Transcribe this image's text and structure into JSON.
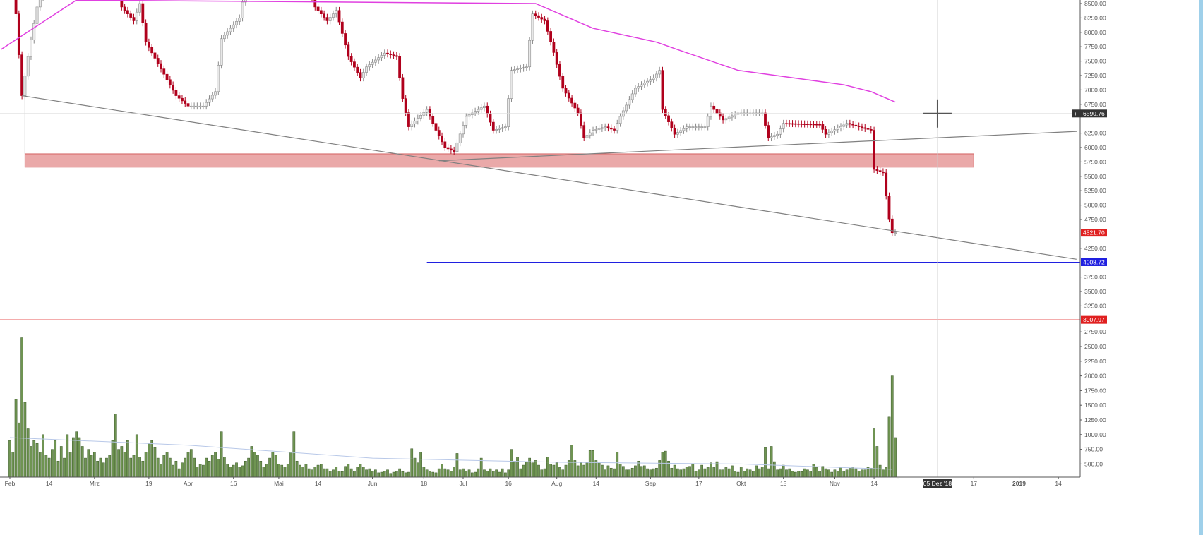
{
  "colors": {
    "candle_up_body": "#e8e8e8",
    "candle_up_border": "#8a8a8a",
    "candle_down": "#b0001c",
    "volume_bar": "#6f9452",
    "volume_bar_border": "#3c5a2a",
    "moving_average": "#e040e0",
    "volume_ma": "#b8c8e8",
    "support_zone": "#e8a0a0",
    "support_zone_border": "#d05050",
    "trendline": "#808080",
    "blue_level": "#2020e0",
    "red_level": "#e02020",
    "crosshair_tag": "#333333"
  },
  "chart_data": {
    "type": "candlestick",
    "title": "",
    "xlabel": "",
    "ylabel": "",
    "price_ylim": [
      2880,
      8560
    ],
    "volume_ylim": [
      0,
      2900
    ],
    "grid": false,
    "x_ticks": [
      {
        "label": "Feb",
        "date": "2018-02-01"
      },
      {
        "label": "14",
        "date": "2018-02-14"
      },
      {
        "label": "Mrz",
        "date": "2018-03-01"
      },
      {
        "label": "19",
        "date": "2018-03-19"
      },
      {
        "label": "Apr",
        "date": "2018-04-01"
      },
      {
        "label": "16",
        "date": "2018-04-16"
      },
      {
        "label": "Mai",
        "date": "2018-05-01"
      },
      {
        "label": "14",
        "date": "2018-05-14"
      },
      {
        "label": "Jun",
        "date": "2018-06-01"
      },
      {
        "label": "18",
        "date": "2018-06-18"
      },
      {
        "label": "Jul",
        "date": "2018-07-01"
      },
      {
        "label": "16",
        "date": "2018-07-16"
      },
      {
        "label": "Aug",
        "date": "2018-08-01"
      },
      {
        "label": "14",
        "date": "2018-08-14"
      },
      {
        "label": "Sep",
        "date": "2018-09-01"
      },
      {
        "label": "17",
        "date": "2018-09-17"
      },
      {
        "label": "Okt",
        "date": "2018-10-01"
      },
      {
        "label": "15",
        "date": "2018-10-15"
      },
      {
        "label": "Nov",
        "date": "2018-11-01"
      },
      {
        "label": "14",
        "date": "2018-11-14"
      },
      {
        "label": "17",
        "date": "2018-12-17"
      },
      {
        "label": "2019",
        "date": "2019-01-01"
      },
      {
        "label": "14",
        "date": "2019-01-14"
      }
    ],
    "price_ticks": [
      "8500.00",
      "8250.00",
      "8000.00",
      "7750.00",
      "7500.00",
      "7250.00",
      "7000.00",
      "6750.00",
      "6250.00",
      "6000.00",
      "5750.00",
      "5500.00",
      "5250.00",
      "5000.00",
      "4750.00",
      "4250.00",
      "3750.00",
      "3500.00",
      "3250.00"
    ],
    "volume_ticks": [
      "2750.00",
      "2500.00",
      "2250.00",
      "2000.00",
      "1750.00",
      "1500.00",
      "1250.00",
      "1000.00",
      "750.00",
      "500.00"
    ],
    "close_keypoints": [
      [
        "2018-02-01",
        8930
      ],
      [
        "2018-02-03",
        8320
      ],
      [
        "2018-02-05",
        6900
      ],
      [
        "2018-02-07",
        7580
      ],
      [
        "2018-02-10",
        8440
      ],
      [
        "2018-02-14",
        9100
      ],
      [
        "2018-02-25",
        10500
      ],
      [
        "2018-03-06",
        9800
      ],
      [
        "2018-03-10",
        8440
      ],
      [
        "2018-03-14",
        8200
      ],
      [
        "2018-03-16",
        8500
      ],
      [
        "2018-03-18",
        7830
      ],
      [
        "2018-03-28",
        6900
      ],
      [
        "2018-04-01",
        6720
      ],
      [
        "2018-04-06",
        6720
      ],
      [
        "2018-04-10",
        6970
      ],
      [
        "2018-04-12",
        7890
      ],
      [
        "2018-04-18",
        8250
      ],
      [
        "2018-04-20",
        8800
      ],
      [
        "2018-04-28",
        9300
      ],
      [
        "2018-05-05",
        9600
      ],
      [
        "2018-05-13",
        8440
      ],
      [
        "2018-05-17",
        8200
      ],
      [
        "2018-05-20",
        8380
      ],
      [
        "2018-05-24",
        7580
      ],
      [
        "2018-05-28",
        7210
      ],
      [
        "2018-05-30",
        7400
      ],
      [
        "2018-06-05",
        7640
      ],
      [
        "2018-06-09",
        7580
      ],
      [
        "2018-06-11",
        6850
      ],
      [
        "2018-06-13",
        6360
      ],
      [
        "2018-06-19",
        6660
      ],
      [
        "2018-06-22",
        6300
      ],
      [
        "2018-06-25",
        6000
      ],
      [
        "2018-06-28",
        5930
      ],
      [
        "2018-07-02",
        6540
      ],
      [
        "2018-07-08",
        6720
      ],
      [
        "2018-07-11",
        6300
      ],
      [
        "2018-07-15",
        6360
      ],
      [
        "2018-07-17",
        7340
      ],
      [
        "2018-07-22",
        7400
      ],
      [
        "2018-07-24",
        8320
      ],
      [
        "2018-07-28",
        8200
      ],
      [
        "2018-07-31",
        7650
      ],
      [
        "2018-08-03",
        7030
      ],
      [
        "2018-08-08",
        6600
      ],
      [
        "2018-08-10",
        6170
      ],
      [
        "2018-08-13",
        6300
      ],
      [
        "2018-08-17",
        6360
      ],
      [
        "2018-08-20",
        6300
      ],
      [
        "2018-08-22",
        6540
      ],
      [
        "2018-08-27",
        7030
      ],
      [
        "2018-09-02",
        7210
      ],
      [
        "2018-09-04",
        7340
      ],
      [
        "2018-09-05",
        6660
      ],
      [
        "2018-09-09",
        6230
      ],
      [
        "2018-09-13",
        6360
      ],
      [
        "2018-09-19",
        6360
      ],
      [
        "2018-09-21",
        6720
      ],
      [
        "2018-09-25",
        6480
      ],
      [
        "2018-09-30",
        6600
      ],
      [
        "2018-10-08",
        6600
      ],
      [
        "2018-10-10",
        6170
      ],
      [
        "2018-10-13",
        6230
      ],
      [
        "2018-10-15",
        6420
      ],
      [
        "2018-10-27",
        6400
      ],
      [
        "2018-10-29",
        6230
      ],
      [
        "2018-11-05",
        6420
      ],
      [
        "2018-11-09",
        6360
      ],
      [
        "2018-11-13",
        6300
      ],
      [
        "2018-11-14",
        5620
      ],
      [
        "2018-11-17",
        5560
      ],
      [
        "2018-11-19",
        4760
      ],
      [
        "2018-11-20",
        4520
      ],
      [
        "2018-11-21",
        4521.7
      ]
    ],
    "moving_average": [
      [
        "2018-01-29",
        7700
      ],
      [
        "2018-02-23",
        8560
      ],
      [
        "2018-07-25",
        8500
      ],
      [
        "2018-08-13",
        8070
      ],
      [
        "2018-09-03",
        7830
      ],
      [
        "2018-09-10",
        7700
      ],
      [
        "2018-09-30",
        7340
      ],
      [
        "2018-10-21",
        7190
      ],
      [
        "2018-11-04",
        7090
      ],
      [
        "2018-11-13",
        6970
      ],
      [
        "2018-11-21",
        6790
      ]
    ],
    "volume_start_date": "2018-02-01",
    "volumes": [
      900,
      700,
      1600,
      1200,
      2650,
      1550,
      1100,
      800,
      900,
      850,
      700,
      1000,
      650,
      600,
      750,
      900,
      550,
      800,
      600,
      1000,
      700,
      950,
      1050,
      950,
      800,
      600,
      750,
      650,
      700,
      550,
      600,
      520,
      600,
      650,
      900,
      1350,
      750,
      800,
      700,
      900,
      600,
      650,
      1000,
      620,
      550,
      700,
      850,
      900,
      780,
      600,
      500,
      650,
      700,
      600,
      480,
      550,
      420,
      520,
      600,
      700,
      750,
      600,
      450,
      500,
      480,
      600,
      550,
      650,
      700,
      580,
      1050,
      620,
      500,
      450,
      480,
      520,
      450,
      470,
      550,
      600,
      800,
      700,
      650,
      550,
      450,
      500,
      600,
      700,
      650,
      500,
      480,
      450,
      500,
      700,
      1050,
      550,
      480,
      450,
      500,
      420,
      400,
      450,
      480,
      500,
      420,
      420,
      380,
      400,
      450,
      380,
      370,
      460,
      500,
      420,
      380,
      450,
      500,
      450,
      400,
      420,
      380,
      400,
      350,
      360,
      380,
      400,
      340,
      360,
      380,
      420,
      370,
      350,
      360,
      760,
      600,
      520,
      700,
      450,
      400,
      380,
      360,
      350,
      420,
      500,
      420,
      400,
      380,
      450,
      680,
      400,
      420,
      380,
      400,
      350,
      360,
      420,
      600,
      400,
      380,
      420,
      380,
      400,
      360,
      420,
      350,
      400,
      750,
      550,
      620,
      420,
      480,
      540,
      600,
      520,
      560,
      480,
      400,
      420,
      620,
      500,
      480,
      520,
      440,
      400,
      480,
      560,
      820,
      560,
      470,
      520,
      480,
      520,
      730,
      730,
      560,
      520,
      480,
      400,
      470,
      430,
      420,
      700,
      500,
      460,
      400,
      400,
      430,
      470,
      550,
      460,
      470,
      420,
      400,
      420,
      430,
      560,
      700,
      720,
      550,
      430,
      480,
      420,
      400,
      420,
      450,
      460,
      500,
      380,
      400,
      480,
      420,
      440,
      520,
      440,
      540,
      400,
      400,
      440,
      420,
      470,
      380,
      360,
      450,
      380,
      420,
      400,
      380,
      470,
      420,
      450,
      780,
      420,
      800,
      540,
      400,
      420,
      480,
      400,
      420,
      380,
      360,
      380,
      370,
      420,
      400,
      380,
      500,
      440,
      380,
      460,
      420,
      400,
      360,
      400,
      380,
      440,
      380,
      400,
      430,
      440,
      420,
      380,
      400,
      400,
      440,
      430,
      1100,
      800,
      480,
      400,
      440,
      1300,
      2000,
      950,
      250
    ],
    "volume_ma": [
      [
        "2018-02-01",
        950
      ],
      [
        "2018-04-01",
        820
      ],
      [
        "2018-06-01",
        600
      ],
      [
        "2018-08-01",
        530
      ],
      [
        "2018-10-01",
        500
      ],
      [
        "2018-11-20",
        410
      ]
    ],
    "drawings": {
      "support_zone": {
        "from": "2018-02-06",
        "to": "2018-12-17",
        "low": 5660,
        "high": 5890
      },
      "descending_trendline": {
        "start": [
          "2018-02-05",
          6900
        ],
        "end": [
          "2019-01-20",
          4060
        ]
      },
      "ascending_trendline": {
        "start": [
          "2018-06-23",
          5770
        ],
        "end": [
          "2019-01-20",
          6280
        ]
      },
      "blue_level": {
        "from": "2018-06-19",
        "price": 4008.72,
        "label": "4008.72"
      },
      "red_level": {
        "price": 3007.97,
        "label": "3007.97"
      },
      "last_price": {
        "price": 4521.7,
        "label": "4521.70"
      },
      "crosshair": {
        "date": "2018-12-05",
        "price": 6590.76,
        "price_label": "6590.76",
        "date_label": "05 Dez '18"
      }
    }
  }
}
